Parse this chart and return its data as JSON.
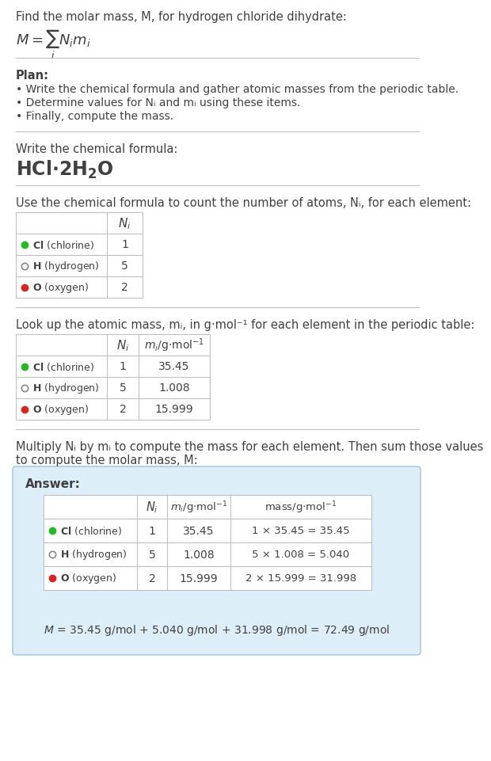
{
  "bg_color": "#ffffff",
  "text_color": "#404040",
  "sep_color": "#c0c0c0",
  "title_line": "Find the molar mass, M, for hydrogen chloride dihydrate:",
  "plan_header": "Plan:",
  "plan_bullets": [
    "• Write the chemical formula and gather atomic masses from the periodic table.",
    "• Determine values for Nᵢ and mᵢ using these items.",
    "• Finally, compute the mass."
  ],
  "chem_formula_label": "Write the chemical formula:",
  "table1_intro": "Use the chemical formula to count the number of atoms, Nᵢ, for each element:",
  "table2_intro": "Look up the atomic mass, mᵢ, in g·mol⁻¹ for each element in the periodic table:",
  "table3_intro_1": "Multiply Nᵢ by mᵢ to compute the mass for each element. Then sum those values",
  "table3_intro_2": "to compute the molar mass, M:",
  "elements": [
    {
      "symbol": "Cl",
      "name": "chlorine",
      "Ni": "1",
      "mi": "35.45",
      "mass_eq": "1 × 35.45 = 35.45",
      "dot_color": "#22bb22",
      "dot_filled": true
    },
    {
      "symbol": "H",
      "name": "hydrogen",
      "Ni": "5",
      "mi": "1.008",
      "mass_eq": "5 × 1.008 = 5.040",
      "dot_color": "#888888",
      "dot_filled": false
    },
    {
      "symbol": "O",
      "name": "oxygen",
      "Ni": "2",
      "mi": "15.999",
      "mass_eq": "2 × 15.999 = 31.998",
      "dot_color": "#dd2222",
      "dot_filled": true
    }
  ],
  "answer_box_color": "#deeef8",
  "answer_box_border": "#a0c4dc",
  "answer_label": "Answer:",
  "final_eq": "M = 35.45 g/mol + 5.040 g/mol + 31.998 g/mol = 72.49 g/mol"
}
